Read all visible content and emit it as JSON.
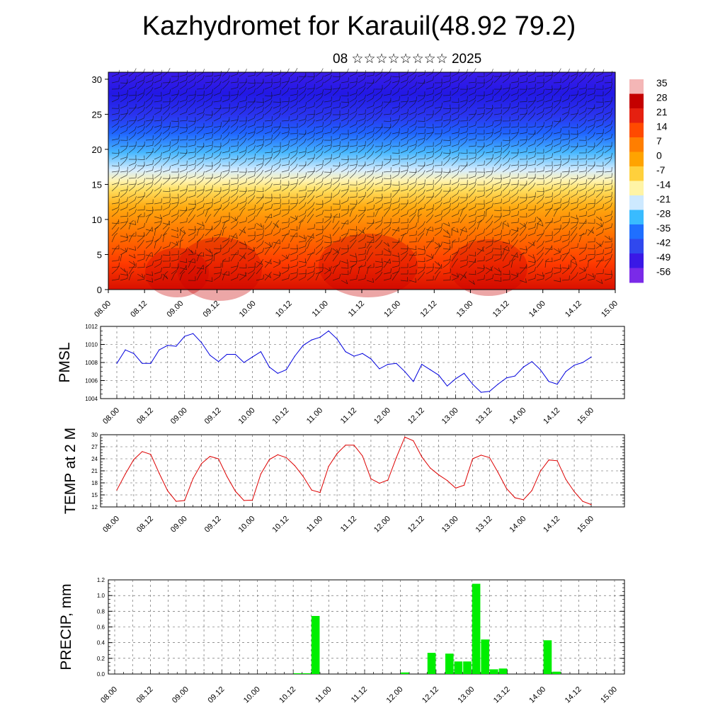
{
  "header": {
    "title": "Kazhydromet for Karauil(48.92 79.2)",
    "subtitle_day": "08",
    "subtitle_month": "☆☆☆☆☆☆☆☆",
    "subtitle_year": "2025"
  },
  "chart_data": [
    {
      "type": "heatmap",
      "name": "vertical-cross-section",
      "description_overlay": "wind barbs",
      "ylim": [
        0,
        31
      ],
      "yticks": [
        0,
        5,
        10,
        15,
        20,
        25,
        30
      ],
      "xticks": [
        "08.00",
        "08.12",
        "09.00",
        "09.12",
        "10.00",
        "10.12",
        "11.00",
        "11.12",
        "12.00",
        "12.12",
        "13.00",
        "13.12",
        "14.00",
        "14.12",
        "15.00"
      ],
      "colorbar": {
        "labels": [
          "35",
          "28",
          "21",
          "14",
          "7",
          "0",
          "-7",
          "-14",
          "-21",
          "-28",
          "-35",
          "-42",
          "-49",
          "-56"
        ],
        "colors": [
          "#f4b6b6",
          "#c40000",
          "#e52010",
          "#ff4a00",
          "#ff7e00",
          "#ffa300",
          "#ffd03c",
          "#fff4a6",
          "#cde9ff",
          "#39bbff",
          "#1f6fff",
          "#3048ee",
          "#3a18e6",
          "#7a2ae8"
        ]
      }
    },
    {
      "type": "line",
      "name": "PMSL",
      "ylabel": "PMSL",
      "ylim": [
        1004,
        1012
      ],
      "yticks": [
        1004,
        1006,
        1008,
        1010,
        1012
      ],
      "color": "#0000dd",
      "x": [
        "08.00",
        "08.03",
        "08.06",
        "08.09",
        "08.12",
        "08.15",
        "08.18",
        "08.21",
        "09.00",
        "09.03",
        "09.06",
        "09.09",
        "09.12",
        "09.15",
        "09.18",
        "09.21",
        "10.00",
        "10.03",
        "10.06",
        "10.09",
        "10.12",
        "10.15",
        "10.18",
        "10.21",
        "11.00",
        "11.03",
        "11.06",
        "11.09",
        "11.12",
        "11.15",
        "11.18",
        "11.21",
        "12.00",
        "12.03",
        "12.06",
        "12.09",
        "12.12",
        "12.15",
        "12.18",
        "12.21",
        "13.00",
        "13.03",
        "13.06",
        "13.09",
        "13.12",
        "13.15",
        "13.18",
        "13.21",
        "14.00",
        "14.03",
        "14.06",
        "14.09",
        "14.12",
        "14.15",
        "14.18",
        "14.21",
        "15.00"
      ],
      "values": [
        1007.9,
        1009.4,
        1009.0,
        1007.9,
        1007.9,
        1009.4,
        1009.9,
        1009.8,
        1010.9,
        1011.2,
        1010.2,
        1008.8,
        1008.1,
        1008.9,
        1008.9,
        1008.0,
        1008.6,
        1009.2,
        1007.5,
        1006.8,
        1007.2,
        1008.7,
        1009.9,
        1010.5,
        1010.8,
        1011.5,
        1010.6,
        1009.2,
        1008.7,
        1009.0,
        1008.4,
        1007.3,
        1007.8,
        1007.9,
        1007.0,
        1005.9,
        1007.8,
        1007.2,
        1006.6,
        1005.4,
        1006.2,
        1006.8,
        1005.6,
        1004.7,
        1004.8,
        1005.6,
        1006.3,
        1006.5,
        1007.5,
        1008.1,
        1007.2,
        1005.9,
        1005.6,
        1007.0,
        1007.7,
        1008.0,
        1008.6
      ]
    },
    {
      "type": "line",
      "name": "TEMP at 2 M",
      "ylabel": "TEMP at 2 M",
      "ylim": [
        12,
        30
      ],
      "yticks": [
        12,
        15,
        18,
        21,
        24,
        27,
        30
      ],
      "color": "#dd0000",
      "x": [
        "08.00",
        "08.03",
        "08.06",
        "08.09",
        "08.12",
        "08.15",
        "08.18",
        "08.21",
        "09.00",
        "09.03",
        "09.06",
        "09.09",
        "09.12",
        "09.15",
        "09.18",
        "09.21",
        "10.00",
        "10.03",
        "10.06",
        "10.09",
        "10.12",
        "10.15",
        "10.18",
        "10.21",
        "11.00",
        "11.03",
        "11.06",
        "11.09",
        "11.12",
        "11.15",
        "11.18",
        "11.21",
        "12.00",
        "12.03",
        "12.06",
        "12.09",
        "12.12",
        "12.15",
        "12.18",
        "12.21",
        "13.00",
        "13.03",
        "13.06",
        "13.09",
        "13.12",
        "13.15",
        "13.18",
        "13.21",
        "14.00",
        "14.03",
        "14.06",
        "14.09",
        "14.12",
        "14.15",
        "14.18",
        "14.21",
        "15.00"
      ],
      "values": [
        16.2,
        20.2,
        23.8,
        25.8,
        25.1,
        20.4,
        16.0,
        13.4,
        13.6,
        19.1,
        22.8,
        24.6,
        24.0,
        19.6,
        15.9,
        13.6,
        13.7,
        20.2,
        23.8,
        25.0,
        24.3,
        22.3,
        19.6,
        16.2,
        15.6,
        22.1,
        25.3,
        27.4,
        27.4,
        24.7,
        19.0,
        17.9,
        18.7,
        24.3,
        29.4,
        28.5,
        24.5,
        21.7,
        20.0,
        18.6,
        16.7,
        17.4,
        24.0,
        24.9,
        24.3,
        20.6,
        16.6,
        14.3,
        13.8,
        16.1,
        20.9,
        23.7,
        23.5,
        18.9,
        15.8,
        13.4,
        12.6
      ]
    },
    {
      "type": "bar",
      "name": "PRECIP",
      "ylabel": "PRECIP, mm",
      "ylim": [
        0,
        1.2
      ],
      "yticks": [
        "0.0",
        "0.2",
        "0.4",
        "0.6",
        "0.8",
        "1.0",
        "1.2"
      ],
      "color": "#00ee00",
      "xticks": [
        "08.00",
        "08.12",
        "09.00",
        "09.12",
        "10.00",
        "10.12",
        "11.00",
        "11.12",
        "12.00",
        "12.12",
        "13.00",
        "13.12",
        "14.00",
        "14.12",
        "15.00"
      ],
      "x": [
        "10.12",
        "10.15",
        "10.18",
        "12.00",
        "12.09",
        "12.15",
        "12.18",
        "12.21",
        "13.00",
        "13.03",
        "13.06",
        "13.09",
        "14.00",
        "14.03"
      ],
      "values": [
        0.01,
        0.01,
        0.74,
        0.02,
        0.27,
        0.26,
        0.16,
        0.16,
        1.15,
        0.44,
        0.06,
        0.07,
        0.43,
        0.03
      ]
    }
  ]
}
